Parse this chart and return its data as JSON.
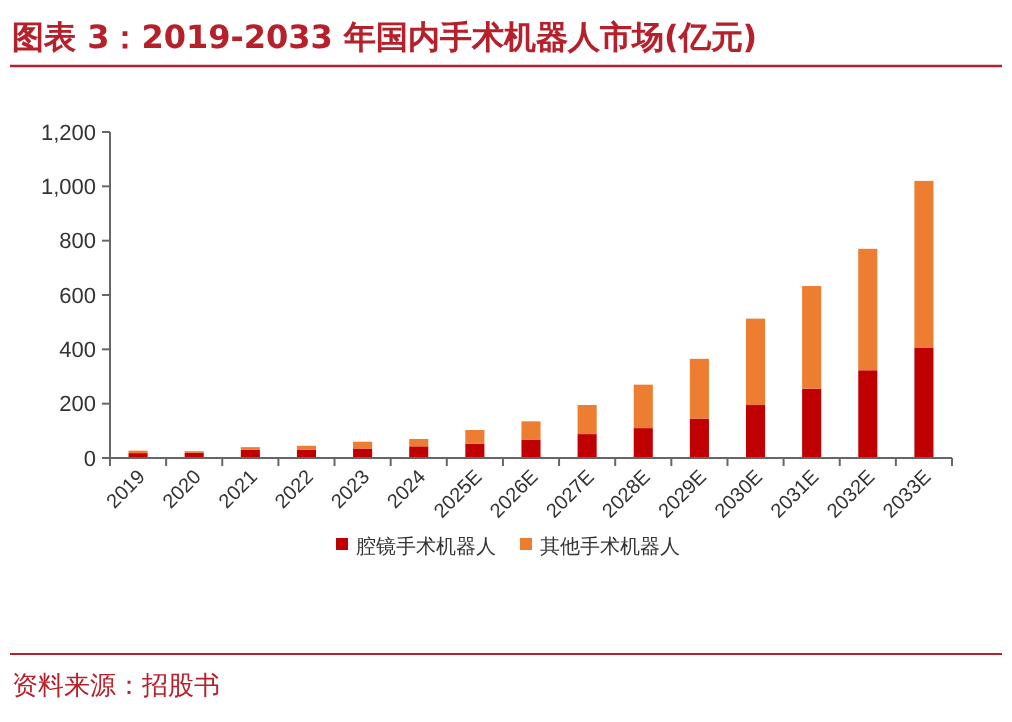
{
  "chart_data": {
    "type": "bar",
    "title": "图表 3：2019-2033 年国内手术机器人市场(亿元)",
    "annotations": [
      "资料来源：招股书"
    ],
    "categories": [
      "2019",
      "2020",
      "2021",
      "2022",
      "2023",
      "2024",
      "2025E",
      "2026E",
      "2027E",
      "2028E",
      "2029E",
      "2030E",
      "2031E",
      "2032E",
      "2033E"
    ],
    "stacked": true,
    "legend": "bottom",
    "ylim": [
      0,
      1200
    ],
    "yticks": [
      0,
      200,
      400,
      600,
      800,
      {
        "value": 1000,
        "label": "1,000"
      },
      {
        "value": 1200,
        "label": "1,200"
      }
    ],
    "series": [
      {
        "name": "腔镜手术机器人",
        "color": "#c00000",
        "values": [
          18,
          20,
          30,
          30,
          35,
          43,
          53,
          68,
          88,
          110,
          145,
          195,
          255,
          323,
          405
        ]
      },
      {
        "name": "其他手术机器人",
        "color": "#ed7d31",
        "values": [
          9,
          5,
          10,
          15,
          25,
          27,
          50,
          67,
          107,
          160,
          220,
          318,
          378,
          447,
          615
        ]
      }
    ]
  }
}
